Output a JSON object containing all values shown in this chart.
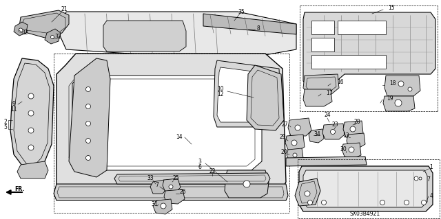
{
  "bg_color": "#ffffff",
  "diagram_code": "SX03B4921",
  "gray": "#aaaaaa",
  "darkgray": "#666666",
  "lightgray": "#cccccc"
}
